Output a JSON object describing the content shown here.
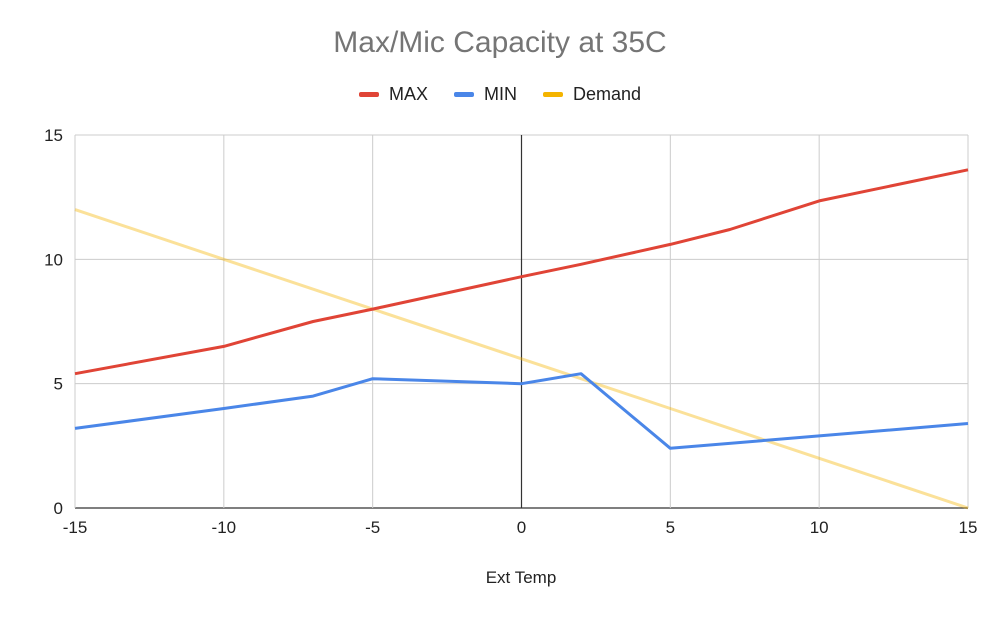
{
  "chart_data": {
    "type": "line",
    "title": "Max/Mic Capacity at 35C",
    "xlabel": "Ext Temp",
    "ylabel": "",
    "xlim": [
      -15,
      15
    ],
    "ylim": [
      0,
      15
    ],
    "x_ticks": [
      -15,
      -10,
      -5,
      0,
      5,
      10,
      15
    ],
    "y_ticks": [
      0,
      5,
      10,
      15
    ],
    "grid": true,
    "legend_position": "top",
    "series": [
      {
        "name": "MAX",
        "color": "#e04436",
        "x": [
          -15,
          -10,
          -7,
          -5,
          0,
          2,
          5,
          7,
          10,
          15
        ],
        "y": [
          5.4,
          6.5,
          7.5,
          8.0,
          9.3,
          9.8,
          10.6,
          11.2,
          12.35,
          13.6
        ]
      },
      {
        "name": "MIN",
        "color": "#4a86e8",
        "x": [
          -15,
          -10,
          -7,
          -5,
          0,
          2,
          5,
          10,
          15
        ],
        "y": [
          3.2,
          4.0,
          4.5,
          5.2,
          5.0,
          5.4,
          2.4,
          2.9,
          3.4
        ]
      },
      {
        "name": "Demand",
        "color": "#f4b400",
        "opacity": 0.4,
        "x": [
          -15,
          -5,
          0,
          5,
          10,
          15
        ],
        "y": [
          12,
          8,
          6,
          4,
          2,
          0
        ]
      }
    ]
  }
}
